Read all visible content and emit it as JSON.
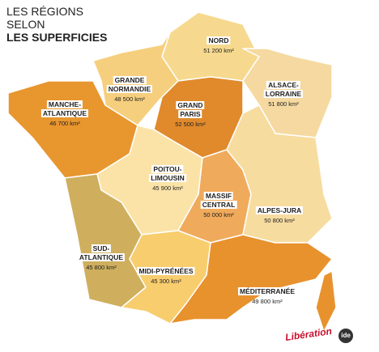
{
  "title": {
    "lines": [
      "LES RÉGIONS",
      "SELON",
      "LES SUPERFICIES"
    ]
  },
  "regions": [
    {
      "name": [
        "NORD"
      ],
      "area": "51 200 km²"
    },
    {
      "name": [
        "ALSACE-",
        "LORRAINE"
      ],
      "area": "51 800 km²"
    },
    {
      "name": [
        "GRANDE",
        "NORMANDIE"
      ],
      "area": "48 500 km²"
    },
    {
      "name": [
        "GRAND",
        "PARIS"
      ],
      "area": "52 500 km²"
    },
    {
      "name": [
        "MANCHE-",
        "ATLANTIQUE"
      ],
      "area": "46 700 km²"
    },
    {
      "name": [
        "POITOU-",
        "LIMOUSIN"
      ],
      "area": "45 900 km²"
    },
    {
      "name": [
        "MASSIF",
        "CENTRAL"
      ],
      "area": "50 000 km²"
    },
    {
      "name": [
        "ALPES-JURA"
      ],
      "area": "50 800 km²"
    },
    {
      "name": [
        "SUD-",
        "ATLANTIQUE"
      ],
      "area": "45 800 km²"
    },
    {
      "name": [
        "MIDI-PYRÉNÉES"
      ],
      "area": "45 300 km²"
    },
    {
      "name": [
        "MÉDITERRANÉE"
      ],
      "area": "49 800 km²"
    }
  ],
  "logos": [
    "Libération",
    "ide"
  ]
}
